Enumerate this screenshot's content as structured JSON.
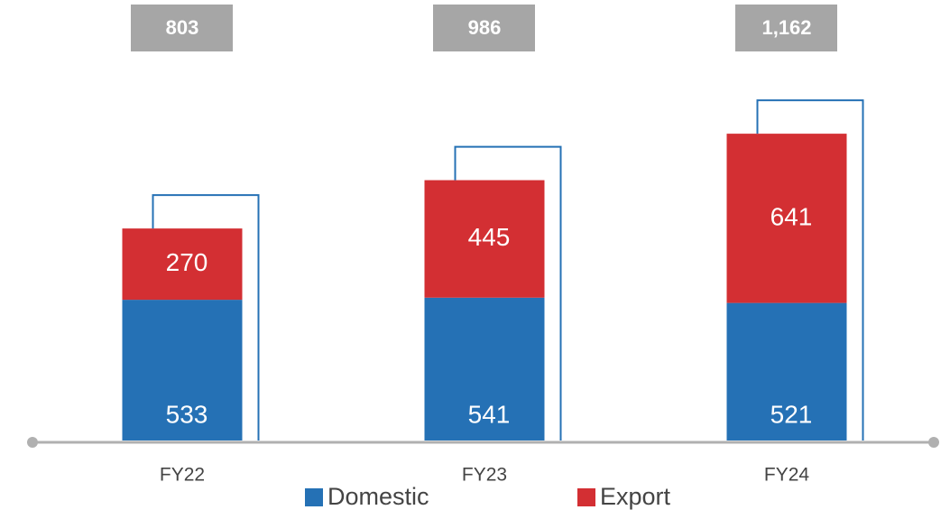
{
  "chart_data": {
    "type": "bar",
    "stacked": true,
    "categories": [
      "FY22",
      "FY23",
      "FY24"
    ],
    "series": [
      {
        "name": "Domestic",
        "color": "#2571b5",
        "values": [
          533,
          541,
          521
        ]
      },
      {
        "name": "Export",
        "color": "#d32f33",
        "values": [
          270,
          445,
          641
        ]
      }
    ],
    "totals": [
      803,
      986,
      1162
    ],
    "total_labels": [
      "803",
      "986",
      "1,162"
    ],
    "ylim": [
      0,
      1600
    ]
  }
}
